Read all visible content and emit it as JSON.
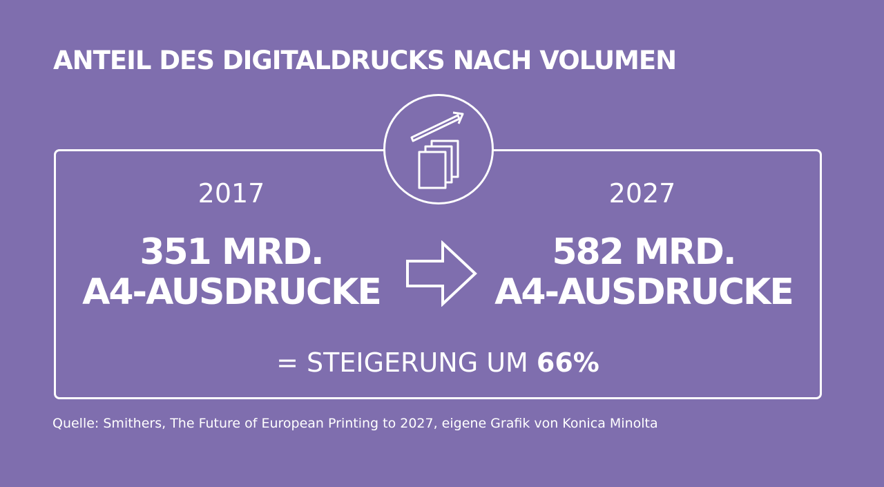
{
  "title": "ANTEIL DES DIGITALDRUCKS NACH VOLUMEN",
  "icon": "printed-pages-growth-icon",
  "before": {
    "year": "2017",
    "amount_line1": "351 MRD.",
    "amount_line2": "A4-AUSDRUCKE"
  },
  "after": {
    "year": "2027",
    "amount_line1": "582 MRD.",
    "amount_line2": "A4-AUSDRUCKE"
  },
  "summary": {
    "prefix": "= STEIGERUNG UM ",
    "percent": "66%"
  },
  "source": "Quelle: Smithers, The Future of European Printing to 2027, eigene Grafik von Konica Minolta",
  "colors": {
    "background": "#7f6eae",
    "foreground": "#ffffff"
  }
}
